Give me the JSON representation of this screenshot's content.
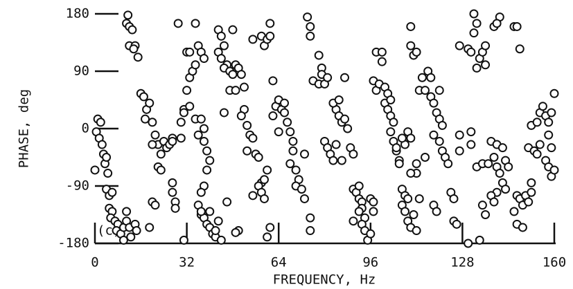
{
  "chart_data": {
    "type": "scatter",
    "panel_label": "(c)",
    "x_label": "FREQUENCY, Hz",
    "y_label": "PHASE, deg",
    "xlim": [
      0,
      160
    ],
    "ylim": [
      -180,
      180
    ],
    "xticks": [
      0,
      32,
      64,
      96,
      128,
      160
    ],
    "yticks": [
      180,
      90,
      0,
      -90,
      -180
    ],
    "color": "#111111",
    "x": [
      0,
      0.5,
      1,
      2,
      1.5,
      2.5,
      3,
      3.5,
      4,
      4.5,
      4,
      5,
      6,
      5,
      6,
      5.5,
      7,
      8,
      7.5,
      9,
      10,
      10,
      11,
      12,
      11,
      12.5,
      14,
      14.5,
      11.5,
      11,
      12,
      13,
      12,
      14,
      13.5,
      15,
      16,
      17,
      18,
      17.5,
      19,
      20,
      21,
      22,
      23,
      20,
      22,
      23,
      20,
      21,
      19,
      24,
      25,
      26,
      27,
      27,
      27,
      27,
      28,
      28,
      30,
      30,
      31,
      32,
      33,
      34,
      35,
      31,
      33,
      35,
      36,
      29,
      32,
      33,
      35,
      36,
      37,
      38,
      37,
      38,
      38,
      39,
      40,
      39,
      38,
      37,
      36,
      37,
      38,
      39,
      40,
      40,
      41,
      42,
      43,
      44,
      37,
      42,
      31,
      43,
      44,
      45,
      43,
      44,
      46,
      45,
      47,
      48,
      49,
      47,
      49,
      48,
      50,
      51,
      52,
      52,
      51,
      53,
      54,
      55,
      53,
      56,
      57,
      55,
      58,
      59,
      60,
      57,
      58,
      59,
      60,
      61,
      50,
      49,
      45,
      46,
      55,
      58,
      59,
      60,
      61,
      61,
      62,
      63,
      62,
      64,
      65,
      66,
      66,
      67,
      68,
      69,
      68,
      70,
      71,
      70,
      72,
      73,
      69,
      73,
      64,
      75,
      75,
      74,
      75,
      75,
      76,
      78,
      78,
      79,
      79,
      80,
      81,
      80,
      81,
      82,
      83,
      84,
      85,
      86,
      84,
      86,
      83,
      85,
      87,
      88,
      89,
      90,
      87,
      90,
      91,
      92,
      93,
      93,
      94,
      93,
      94,
      95,
      96,
      92,
      92,
      90,
      97,
      96,
      97,
      97,
      98,
      98,
      100,
      100,
      99,
      101,
      102,
      101,
      102,
      103,
      104,
      103,
      104,
      105,
      106,
      106,
      108,
      109,
      110,
      107,
      108,
      109,
      107,
      108,
      109,
      110,
      111,
      112,
      103,
      105,
      107,
      112,
      112,
      110,
      110,
      110,
      111,
      112,
      113,
      114,
      115,
      116,
      117,
      117,
      118,
      119,
      120,
      121,
      118,
      120,
      121,
      122,
      120,
      118,
      119,
      123,
      124,
      125,
      125,
      126,
      113,
      115,
      127,
      130,
      132,
      131,
      133,
      134,
      135,
      136,
      132,
      133,
      136,
      131,
      131,
      133,
      135,
      137,
      139,
      140,
      141,
      138,
      140,
      142,
      143,
      140,
      135,
      136,
      130,
      134,
      127,
      127,
      138,
      139,
      142,
      143,
      144,
      147,
      148,
      147,
      149,
      146,
      149,
      150,
      152,
      151,
      152,
      151,
      153,
      154,
      152,
      154,
      155,
      156,
      157,
      158,
      155,
      157,
      158,
      159,
      159,
      160,
      159,
      160,
      158,
      141,
      146,
      147,
      148,
      139,
      140
    ],
    "values": [
      -65,
      -5,
      15,
      10,
      -15,
      -25,
      -40,
      -55,
      -45,
      -70,
      -95,
      -105,
      -100,
      -125,
      -130,
      -140,
      -145,
      -150,
      -160,
      -165,
      -175,
      -155,
      -145,
      -155,
      -130,
      -170,
      -150,
      -160,
      178,
      165,
      160,
      155,
      130,
      130,
      125,
      112,
      55,
      50,
      30,
      15,
      40,
      10,
      -10,
      -25,
      -40,
      -25,
      -60,
      -65,
      -115,
      -120,
      -155,
      -20,
      -30,
      -25,
      -15,
      -20,
      -85,
      -100,
      -115,
      -125,
      -15,
      10,
      30,
      60,
      80,
      90,
      100,
      25,
      35,
      15,
      -10,
      165,
      120,
      120,
      165,
      130,
      120,
      110,
      15,
      0,
      -20,
      -35,
      -50,
      -65,
      -90,
      -100,
      -120,
      -135,
      -140,
      -150,
      -155,
      -130,
      -165,
      -170,
      -145,
      -175,
      -130,
      -160,
      -175,
      155,
      145,
      130,
      120,
      110,
      100,
      95,
      90,
      85,
      100,
      60,
      60,
      155,
      95,
      85,
      65,
      30,
      20,
      5,
      -10,
      -15,
      -35,
      -40,
      -45,
      -105,
      -85,
      -80,
      -65,
      -90,
      -100,
      -110,
      -170,
      -155,
      -160,
      -163,
      25,
      -115,
      140,
      145,
      130,
      140,
      165,
      145,
      20,
      35,
      75,
      45,
      30,
      40,
      25,
      10,
      -5,
      -20,
      -55,
      -65,
      -80,
      -90,
      -95,
      -110,
      -35,
      -40,
      -5,
      -160,
      -140,
      175,
      160,
      145,
      75,
      70,
      115,
      95,
      85,
      70,
      80,
      -20,
      -30,
      -40,
      -50,
      30,
      20,
      10,
      -25,
      -50,
      40,
      45,
      15,
      0,
      -30,
      -40,
      80,
      -95,
      -100,
      -110,
      -115,
      -125,
      -140,
      -150,
      -160,
      -175,
      -165,
      -130,
      -90,
      -145,
      -130,
      -110,
      -115,
      75,
      60,
      120,
      120,
      105,
      70,
      65,
      55,
      40,
      30,
      20,
      10,
      -5,
      -20,
      -35,
      -50,
      -55,
      -25,
      -5,
      -15,
      -95,
      -105,
      -110,
      -120,
      -130,
      -145,
      -155,
      -135,
      -160,
      45,
      -30,
      -15,
      -55,
      -70,
      -70,
      160,
      130,
      115,
      120,
      60,
      80,
      60,
      90,
      80,
      50,
      40,
      25,
      15,
      5,
      -10,
      -20,
      -35,
      -45,
      60,
      -120,
      -130,
      -55,
      -100,
      -110,
      -145,
      -150,
      -110,
      -45,
      130,
      125,
      150,
      120,
      95,
      110,
      120,
      130,
      180,
      165,
      100,
      -5,
      -25,
      -60,
      -55,
      -55,
      -45,
      -60,
      -70,
      -20,
      -25,
      -85,
      -95,
      -100,
      -120,
      -135,
      -180,
      -175,
      -10,
      -35,
      -105,
      -115,
      -30,
      -50,
      -60,
      -105,
      -110,
      -150,
      -155,
      -130,
      -120,
      -105,
      -100,
      -115,
      -85,
      -30,
      -35,
      -40,
      5,
      10,
      25,
      35,
      20,
      -10,
      -25,
      -50,
      -60,
      -30,
      -75,
      -65,
      25,
      55,
      10,
      175,
      160,
      160,
      125,
      160,
      165
    ]
  }
}
